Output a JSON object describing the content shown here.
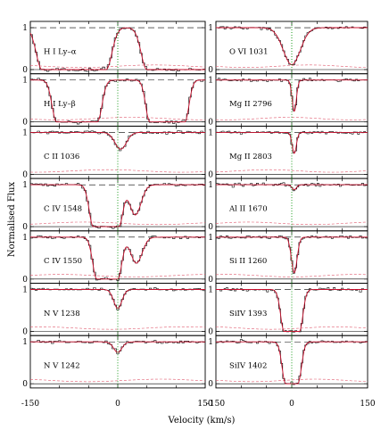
{
  "chart_data": {
    "type": "line",
    "xlabel": "Velocity (km/s)",
    "ylabel": "Normalised Flux",
    "xlim": [
      -150,
      150
    ],
    "ylim": [
      -0.1,
      1.15
    ],
    "x_ticks": [
      "-150",
      "0",
      "150"
    ],
    "x_tick_values": [
      -150,
      0,
      150
    ],
    "y_ticks": [
      "0",
      "1"
    ],
    "y_tick_values": [
      0,
      1
    ],
    "vertical_marker_velocity": 0,
    "panels": [
      {
        "column": 0,
        "row": 0,
        "label": "H I Ly–α",
        "comps": [
          {
            "center": -75,
            "width": 14,
            "depth": 1.0,
            "shape": "sat",
            "half": 55
          },
          {
            "center": 105,
            "width": 14,
            "depth": 1.0,
            "shape": "sat",
            "half": 55
          }
        ]
      },
      {
        "column": 0,
        "row": 1,
        "label": "H I Ly–β",
        "comps": [
          {
            "center": -70,
            "width": 11,
            "depth": 1.0,
            "shape": "sat",
            "half": 35
          },
          {
            "center": 85,
            "width": 10,
            "depth": 1.0,
            "shape": "sat",
            "half": 30
          }
        ]
      },
      {
        "column": 0,
        "row": 2,
        "label": "C II 1036",
        "comps": [
          {
            "center": 5,
            "width": 14,
            "depth": 0.4
          }
        ]
      },
      {
        "column": 0,
        "row": 3,
        "label": "C IV 1548",
        "comps": [
          {
            "center": -20,
            "width": 10,
            "depth": 1.0,
            "shape": "sat",
            "half": 22
          },
          {
            "center": 30,
            "width": 14,
            "depth": 0.72
          }
        ]
      },
      {
        "column": 0,
        "row": 4,
        "label": "C IV 1550",
        "comps": [
          {
            "center": -18,
            "width": 10,
            "depth": 1.0,
            "shape": "sat",
            "half": 18
          },
          {
            "center": 32,
            "width": 14,
            "depth": 0.62
          }
        ]
      },
      {
        "column": 0,
        "row": 5,
        "label": "N V 1238",
        "comps": [
          {
            "center": 0,
            "width": 10,
            "depth": 0.45
          }
        ]
      },
      {
        "column": 0,
        "row": 6,
        "label": "N V 1242",
        "comps": [
          {
            "center": 0,
            "width": 10,
            "depth": 0.25
          }
        ]
      },
      {
        "column": 1,
        "row": 0,
        "label": "O VI 1031",
        "comps": [
          {
            "center": 0,
            "width": 24,
            "depth": 0.88
          }
        ]
      },
      {
        "column": 1,
        "row": 1,
        "label": "Mg II 2796",
        "comps": [
          {
            "center": 5,
            "width": 6,
            "depth": 0.75
          }
        ]
      },
      {
        "column": 1,
        "row": 2,
        "label": "Mg II 2803",
        "comps": [
          {
            "center": 5,
            "width": 6,
            "depth": 0.5
          }
        ]
      },
      {
        "column": 1,
        "row": 3,
        "label": "Al II 1670",
        "comps": [
          {
            "center": 5,
            "width": 6,
            "depth": 0.12
          }
        ]
      },
      {
        "column": 1,
        "row": 4,
        "label": "Si II 1260",
        "comps": [
          {
            "center": 5,
            "width": 8,
            "depth": 0.85
          }
        ]
      },
      {
        "column": 1,
        "row": 5,
        "label": "SiIV 1393",
        "comps": [
          {
            "center": 0,
            "width": 10,
            "depth": 1.0,
            "shape": "sat",
            "half": 15
          }
        ]
      },
      {
        "column": 1,
        "row": 6,
        "label": "SiIV 1402",
        "comps": [
          {
            "center": 0,
            "width": 10,
            "depth": 1.0,
            "shape": "sat",
            "half": 12
          }
        ]
      }
    ]
  }
}
